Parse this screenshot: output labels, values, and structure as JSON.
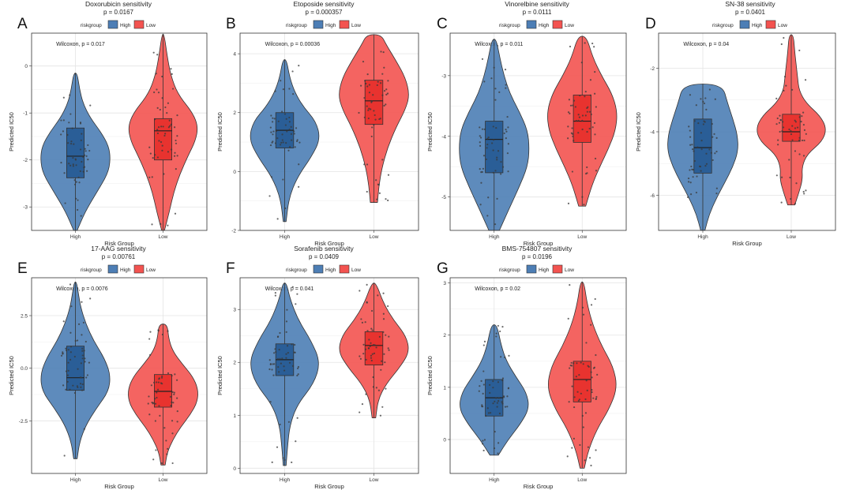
{
  "figure": {
    "legend_title": "riskgroup"
  },
  "colors": {
    "high": "#4d7eb5",
    "low": "#f35350",
    "high_box": "#2a5e97",
    "low_box": "#e8332f"
  },
  "chart_data": [
    {
      "type": "violin",
      "panel_letter": "A",
      "title": "Doxorubicin sensitivity",
      "subtitle": "p = 0.0167",
      "xlabel": "Risk Group",
      "ylabel": "Predicted IC50",
      "annotation": "Wilcoxon, p = 0.017",
      "ylim": [
        -3.5,
        0.7
      ],
      "yticks": [
        0,
        -1,
        -2,
        -3
      ],
      "ytick_labels": [
        "0",
        "-1",
        "-2",
        "-3"
      ],
      "categories": [
        "High",
        "Low"
      ],
      "legend": [
        "High",
        "Low"
      ],
      "groups": [
        {
          "name": "High",
          "min": -3.5,
          "q1": -2.38,
          "median": -1.92,
          "q3": -1.32,
          "max": -0.15,
          "density_y": [
            -3.5,
            -3.1,
            -2.7,
            -2.3,
            -2.0,
            -1.7,
            -1.4,
            -1.1,
            -0.8,
            -0.5,
            -0.15
          ],
          "density_w": [
            0.05,
            0.28,
            0.6,
            0.92,
            1.0,
            0.95,
            0.72,
            0.42,
            0.22,
            0.12,
            0.05
          ]
        },
        {
          "name": "Low",
          "min": -3.5,
          "q1": -2.0,
          "median": -1.38,
          "q3": -1.12,
          "max": 0.68,
          "density_y": [
            -3.5,
            -3.1,
            -2.7,
            -2.3,
            -1.9,
            -1.6,
            -1.3,
            -1.0,
            -0.6,
            -0.2,
            0.2,
            0.68
          ],
          "density_w": [
            0.04,
            0.18,
            0.3,
            0.48,
            0.72,
            0.92,
            1.0,
            0.85,
            0.42,
            0.22,
            0.12,
            0.03
          ]
        }
      ]
    },
    {
      "type": "violin",
      "panel_letter": "B",
      "title": "Etoposide sensitivity",
      "subtitle": "p = 0.000357",
      "xlabel": "Risk Group",
      "ylabel": "Predicted IC50",
      "annotation": "Wilcoxon, p = 0.00036",
      "ylim": [
        -2.0,
        4.7
      ],
      "yticks": [
        4,
        2,
        0,
        -2
      ],
      "ytick_labels": [
        "4",
        "2",
        "0",
        "-2"
      ],
      "categories": [
        "High",
        "Low"
      ],
      "legend": [
        "High",
        "Low"
      ],
      "groups": [
        {
          "name": "High",
          "min": -1.7,
          "q1": 0.8,
          "median": 1.4,
          "q3": 2.0,
          "max": 3.8,
          "density_y": [
            -1.7,
            -0.9,
            -0.2,
            0.5,
            1.1,
            1.7,
            2.2,
            2.7,
            3.2,
            3.8
          ],
          "density_w": [
            0.04,
            0.12,
            0.35,
            0.75,
            1.0,
            0.88,
            0.52,
            0.28,
            0.14,
            0.05
          ]
        },
        {
          "name": "Low",
          "min": -1.05,
          "q1": 1.6,
          "median": 2.4,
          "q3": 3.1,
          "max": 4.65,
          "density_y": [
            -1.05,
            -0.5,
            0.1,
            0.8,
            1.5,
            2.1,
            2.6,
            3.2,
            3.8,
            4.3,
            4.65
          ],
          "density_w": [
            0.1,
            0.14,
            0.22,
            0.38,
            0.62,
            0.88,
            1.0,
            0.88,
            0.6,
            0.35,
            0.2
          ]
        }
      ]
    },
    {
      "type": "violin",
      "panel_letter": "C",
      "title": "Vinorelbine sensitivity",
      "subtitle": "p = 0.0111",
      "xlabel": "Risk Group",
      "ylabel": "Predicted IC50",
      "annotation": "Wilcoxon, p = 0.011",
      "ylim": [
        -5.55,
        -2.3
      ],
      "yticks": [
        -3,
        -4,
        -5
      ],
      "ytick_labels": [
        "-3",
        "-4",
        "-5"
      ],
      "categories": [
        "High",
        "Low"
      ],
      "legend": [
        "High",
        "Low"
      ],
      "groups": [
        {
          "name": "High",
          "min": -5.55,
          "q1": -4.6,
          "median": -4.05,
          "q3": -3.75,
          "max": -2.4,
          "density_y": [
            -5.55,
            -5.2,
            -4.85,
            -4.5,
            -4.2,
            -3.9,
            -3.6,
            -3.3,
            -3.0,
            -2.7,
            -2.4
          ],
          "density_w": [
            0.15,
            0.42,
            0.7,
            0.95,
            1.0,
            0.95,
            0.72,
            0.45,
            0.28,
            0.16,
            0.06
          ]
        },
        {
          "name": "Low",
          "min": -5.15,
          "q1": -4.1,
          "median": -3.75,
          "q3": -3.32,
          "max": -2.35,
          "density_y": [
            -5.15,
            -4.8,
            -4.5,
            -4.2,
            -3.9,
            -3.6,
            -3.3,
            -3.0,
            -2.7,
            -2.35
          ],
          "density_w": [
            0.1,
            0.28,
            0.5,
            0.75,
            0.95,
            1.0,
            0.85,
            0.55,
            0.3,
            0.12
          ]
        }
      ]
    },
    {
      "type": "violin",
      "panel_letter": "D",
      "title": "SN-38 sensitivity",
      "subtitle": "p = 0.0401",
      "xlabel": "Risk Group",
      "ylabel": "Predicted IC50",
      "annotation": "Wilcoxon, p = 0.04",
      "ylim": [
        -7.1,
        -0.9
      ],
      "yticks": [
        -2,
        -4,
        -6
      ],
      "ytick_labels": [
        "-2",
        "-4",
        "-6"
      ],
      "categories": [
        "High",
        "Low"
      ],
      "legend": [
        "High",
        "Low"
      ],
      "groups": [
        {
          "name": "High",
          "min": -7.1,
          "q1": -5.3,
          "median": -4.5,
          "q3": -3.6,
          "max": -2.5,
          "density_y": [
            -7.1,
            -6.6,
            -6.1,
            -5.6,
            -5.1,
            -4.6,
            -4.1,
            -3.6,
            -3.1,
            -2.5
          ],
          "density_w": [
            0.06,
            0.18,
            0.38,
            0.62,
            0.85,
            1.0,
            0.98,
            0.85,
            0.7,
            0.55
          ]
        },
        {
          "name": "Low",
          "min": -6.3,
          "q1": -4.3,
          "median": -4.0,
          "q3": -3.45,
          "max": -0.95,
          "density_y": [
            -6.3,
            -5.9,
            -5.5,
            -5.1,
            -4.7,
            -4.3,
            -3.9,
            -3.5,
            -3.1,
            -2.7,
            -2.3,
            -1.9,
            -1.5,
            -0.95
          ],
          "density_w": [
            0.1,
            0.22,
            0.32,
            0.3,
            0.45,
            0.88,
            1.0,
            0.82,
            0.42,
            0.22,
            0.18,
            0.14,
            0.1,
            0.06
          ]
        }
      ]
    },
    {
      "type": "violin",
      "panel_letter": "E",
      "title": "17-AAG sensitivity",
      "subtitle": "p = 0.00761",
      "xlabel": "Risk Group",
      "ylabel": "Predicted IC50",
      "annotation": "Wilcoxon, p = 0.0076",
      "ylim": [
        -5.0,
        4.3
      ],
      "yticks": [
        2.5,
        0.0,
        -2.5
      ],
      "ytick_labels": [
        "2.5",
        "0.0",
        "-2.5"
      ],
      "categories": [
        "High",
        "Low"
      ],
      "legend": [
        "High",
        "Low"
      ],
      "groups": [
        {
          "name": "High",
          "min": -4.3,
          "q1": -1.05,
          "median": -0.45,
          "q3": 1.05,
          "max": 4.1,
          "density_y": [
            -4.3,
            -3.5,
            -2.7,
            -1.9,
            -1.1,
            -0.3,
            0.5,
            1.3,
            2.1,
            2.9,
            3.6,
            4.1
          ],
          "density_w": [
            0.05,
            0.12,
            0.3,
            0.6,
            0.95,
            1.0,
            0.82,
            0.52,
            0.3,
            0.15,
            0.08,
            0.03
          ]
        },
        {
          "name": "Low",
          "min": -4.6,
          "q1": -1.85,
          "median": -1.1,
          "q3": -0.3,
          "max": 2.1,
          "density_y": [
            -4.6,
            -4.0,
            -3.4,
            -2.8,
            -2.2,
            -1.6,
            -1.0,
            -0.4,
            0.2,
            0.8,
            1.4,
            2.1
          ],
          "density_w": [
            0.06,
            0.12,
            0.28,
            0.5,
            0.78,
            0.98,
            1.0,
            0.85,
            0.55,
            0.28,
            0.16,
            0.12
          ]
        }
      ]
    },
    {
      "type": "violin",
      "panel_letter": "F",
      "title": "Sorafenib sensitivity",
      "subtitle": "p = 0.0409",
      "xlabel": "Risk Group",
      "ylabel": "Predicted IC50",
      "annotation": "Wilcoxon, p = 0.041",
      "ylim": [
        -0.1,
        3.6
      ],
      "yticks": [
        3,
        2,
        1,
        0
      ],
      "ytick_labels": [
        "3",
        "2",
        "1",
        "0"
      ],
      "categories": [
        "High",
        "Low"
      ],
      "legend": [
        "High",
        "Low"
      ],
      "groups": [
        {
          "name": "High",
          "min": 0.05,
          "q1": 1.75,
          "median": 2.05,
          "q3": 2.35,
          "max": 3.5,
          "density_y": [
            0.05,
            0.4,
            0.8,
            1.2,
            1.6,
            2.0,
            2.4,
            2.8,
            3.2,
            3.5
          ],
          "density_w": [
            0.04,
            0.08,
            0.14,
            0.35,
            0.82,
            1.0,
            0.75,
            0.38,
            0.15,
            0.05
          ]
        },
        {
          "name": "Low",
          "min": 0.95,
          "q1": 1.95,
          "median": 2.32,
          "q3": 2.58,
          "max": 3.5,
          "density_y": [
            0.95,
            1.3,
            1.6,
            1.9,
            2.2,
            2.5,
            2.8,
            3.1,
            3.5
          ],
          "density_w": [
            0.05,
            0.12,
            0.35,
            0.72,
            1.0,
            0.9,
            0.55,
            0.28,
            0.06
          ]
        }
      ]
    },
    {
      "type": "violin",
      "panel_letter": "G",
      "title": "BMS-754807 sensitivity",
      "subtitle": "p = 0.0196",
      "xlabel": "Risk Group",
      "ylabel": "Predicted IC50",
      "annotation": "Wilcoxon, p = 0.02",
      "ylim": [
        -0.65,
        3.1
      ],
      "yticks": [
        3,
        2,
        1,
        0
      ],
      "ytick_labels": [
        "3",
        "2",
        "1",
        "0"
      ],
      "categories": [
        "High",
        "Low"
      ],
      "legend": [
        "High",
        "Low"
      ],
      "groups": [
        {
          "name": "High",
          "min": -0.3,
          "q1": 0.45,
          "median": 0.8,
          "q3": 1.15,
          "max": 2.2,
          "density_y": [
            -0.3,
            0.0,
            0.3,
            0.6,
            0.9,
            1.2,
            1.5,
            1.8,
            2.2
          ],
          "density_w": [
            0.12,
            0.4,
            0.75,
            1.0,
            0.92,
            0.62,
            0.35,
            0.2,
            0.08
          ]
        },
        {
          "name": "Low",
          "min": -0.55,
          "q1": 0.72,
          "median": 1.15,
          "q3": 1.5,
          "max": 3.02,
          "density_y": [
            -0.55,
            -0.2,
            0.2,
            0.6,
            1.0,
            1.4,
            1.8,
            2.2,
            2.6,
            3.02
          ],
          "density_w": [
            0.06,
            0.18,
            0.42,
            0.78,
            1.0,
            0.88,
            0.55,
            0.3,
            0.14,
            0.05
          ]
        }
      ]
    }
  ]
}
